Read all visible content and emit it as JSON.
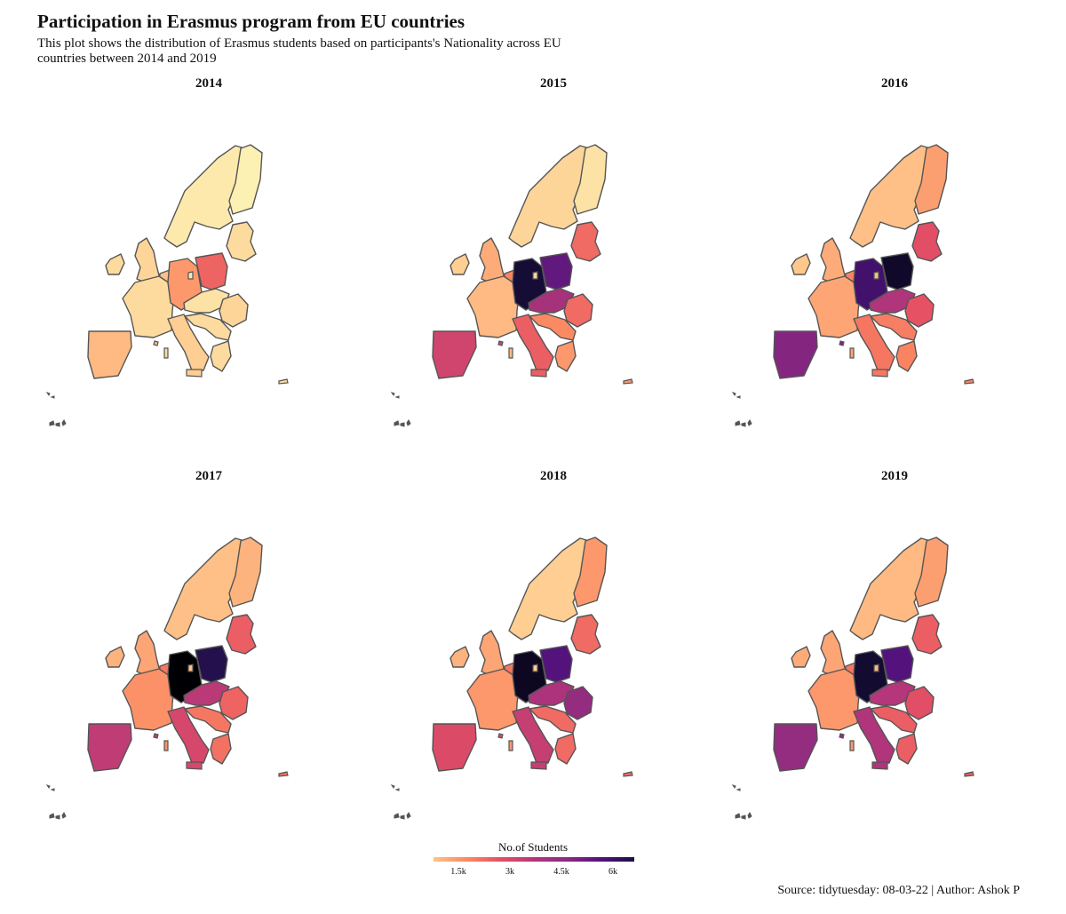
{
  "title": "Participation in Erasmus program from EU countries",
  "subtitle": "This plot shows the distribution of Erasmus students based on participants's Nationality across EU countries between 2014 and 2019",
  "caption": "Source: tidytuesday: 08-03-22 | Author: Ashok P",
  "legend": {
    "title": "No.of Students",
    "ticks": [
      {
        "label": "1.5k",
        "value": 1500
      },
      {
        "label": "3k",
        "value": 3000
      },
      {
        "label": "4.5k",
        "value": 4500
      },
      {
        "label": "6k",
        "value": 6000
      }
    ],
    "range": [
      0,
      7000
    ],
    "palette": [
      "#fcfdbf",
      "#fec287",
      "#fb8761",
      "#e55064",
      "#b5367a",
      "#8c2981",
      "#51127c",
      "#1c1044",
      "#000004"
    ]
  },
  "panels": [
    {
      "year": "2014",
      "shading": {
        "iberia": 1000,
        "france": 500,
        "germany": 1500,
        "poland": 2300,
        "italy": 700,
        "uk": 600,
        "ireland": 500,
        "nordic": 300,
        "finland": 200,
        "baltics": 500,
        "central": 400,
        "romania": 600,
        "balkans": 500,
        "benelux": 900,
        "greece": 500
      }
    },
    {
      "year": "2015",
      "shading": {
        "iberia": 3000,
        "france": 1000,
        "germany": 6300,
        "poland": 5000,
        "italy": 2400,
        "uk": 1200,
        "ireland": 700,
        "nordic": 600,
        "finland": 400,
        "baltics": 2200,
        "central": 3800,
        "romania": 2200,
        "balkans": 1700,
        "benelux": 1800,
        "greece": 1500
      }
    },
    {
      "year": "2016",
      "shading": {
        "iberia": 4500,
        "france": 1300,
        "germany": 5500,
        "poland": 6500,
        "italy": 2000,
        "uk": 1200,
        "ireland": 800,
        "nordic": 900,
        "finland": 1400,
        "baltics": 2700,
        "central": 3600,
        "romania": 2600,
        "balkans": 1900,
        "benelux": 1800,
        "greece": 1800
      }
    },
    {
      "year": "2017",
      "shading": {
        "iberia": 3300,
        "france": 1600,
        "germany": 7000,
        "poland": 6000,
        "italy": 2900,
        "uk": 1300,
        "ireland": 1100,
        "nordic": 900,
        "finland": 1100,
        "baltics": 2400,
        "central": 3400,
        "romania": 2300,
        "balkans": 2000,
        "benelux": 2000,
        "greece": 2100
      }
    },
    {
      "year": "2018",
      "shading": {
        "iberia": 2800,
        "france": 1500,
        "germany": 6600,
        "poland": 5200,
        "italy": 3200,
        "uk": 1300,
        "ireland": 1100,
        "nordic": 700,
        "finland": 1500,
        "baltics": 2200,
        "central": 3700,
        "romania": 4200,
        "balkans": 2200,
        "benelux": 2000,
        "greece": 2200
      }
    },
    {
      "year": "2019",
      "shading": {
        "iberia": 4200,
        "france": 1500,
        "germany": 6400,
        "poland": 5200,
        "italy": 3600,
        "uk": 1300,
        "ireland": 1200,
        "nordic": 1000,
        "finland": 1400,
        "baltics": 2400,
        "central": 3500,
        "romania": 2700,
        "balkans": 2400,
        "benelux": 2000,
        "greece": 2400
      }
    }
  ]
}
